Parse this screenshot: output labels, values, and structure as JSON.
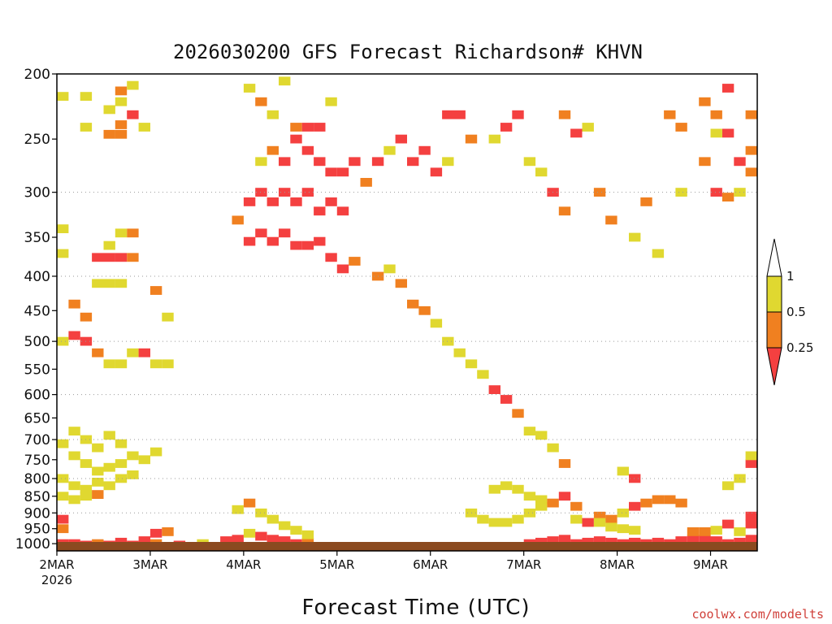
{
  "chart_data": {
    "type": "heatmap",
    "title": "2026030200 GFS Forecast Richardson# KHVN",
    "xlabel": "Forecast Time (UTC)",
    "ylabel": "Pressure (hPa)",
    "x_ticks": [
      "2MAR",
      "3MAR",
      "4MAR",
      "5MAR",
      "6MAR",
      "7MAR",
      "8MAR",
      "9MAR"
    ],
    "x_year_label": "2026",
    "x_range_hours": [
      0,
      180
    ],
    "y_ticks": [
      200,
      250,
      300,
      350,
      400,
      450,
      500,
      550,
      600,
      650,
      700,
      750,
      800,
      850,
      900,
      950,
      1000
    ],
    "ylim": [
      1025,
      200
    ],
    "legend": {
      "labels": [
        "1",
        "0.5",
        "0.25"
      ],
      "bins": [
        {
          "range": "> 1",
          "color": "#ffffff"
        },
        {
          "range": "0.5 - 1",
          "color": "#e0d830"
        },
        {
          "range": "0.25 - 0.5",
          "color": "#f08020"
        },
        {
          "range": "< 0.25",
          "color": "#f44040"
        }
      ]
    },
    "cells": [
      [
        0,
        216,
        "#e0d830"
      ],
      [
        6,
        216,
        "#e0d830"
      ],
      [
        12,
        226,
        "#e0d830"
      ],
      [
        15,
        212,
        "#f08020"
      ],
      [
        15,
        220,
        "#e0d830"
      ],
      [
        12,
        246,
        "#f08020"
      ],
      [
        15,
        246,
        "#f08020"
      ],
      [
        15,
        238,
        "#f08020"
      ],
      [
        18,
        230,
        "#f44040"
      ],
      [
        18,
        208,
        "#e0d830"
      ],
      [
        21,
        240,
        "#e0d830"
      ],
      [
        6,
        240,
        "#e0d830"
      ],
      [
        0,
        340,
        "#e0d830"
      ],
      [
        0,
        370,
        "#e0d830"
      ],
      [
        9,
        375,
        "#f44040"
      ],
      [
        12,
        375,
        "#f44040"
      ],
      [
        15,
        375,
        "#f44040"
      ],
      [
        18,
        375,
        "#f08020"
      ],
      [
        18,
        345,
        "#f08020"
      ],
      [
        15,
        345,
        "#e0d830"
      ],
      [
        12,
        360,
        "#e0d830"
      ],
      [
        9,
        410,
        "#e0d830"
      ],
      [
        12,
        410,
        "#e0d830"
      ],
      [
        15,
        410,
        "#e0d830"
      ],
      [
        3,
        440,
        "#f08020"
      ],
      [
        6,
        460,
        "#f08020"
      ],
      [
        3,
        490,
        "#f44040"
      ],
      [
        6,
        500,
        "#f44040"
      ],
      [
        0,
        500,
        "#e0d830"
      ],
      [
        9,
        520,
        "#f08020"
      ],
      [
        12,
        540,
        "#e0d830"
      ],
      [
        15,
        540,
        "#e0d830"
      ],
      [
        18,
        520,
        "#e0d830"
      ],
      [
        21,
        520,
        "#f44040"
      ],
      [
        24,
        540,
        "#e0d830"
      ],
      [
        27,
        540,
        "#e0d830"
      ],
      [
        27,
        460,
        "#e0d830"
      ],
      [
        24,
        420,
        "#f08020"
      ],
      [
        45,
        330,
        "#f08020"
      ],
      [
        48,
        310,
        "#f44040"
      ],
      [
        51,
        300,
        "#f44040"
      ],
      [
        54,
        310,
        "#f44040"
      ],
      [
        57,
        300,
        "#f44040"
      ],
      [
        60,
        310,
        "#f44040"
      ],
      [
        63,
        300,
        "#f44040"
      ],
      [
        66,
        320,
        "#f44040"
      ],
      [
        69,
        310,
        "#f44040"
      ],
      [
        72,
        320,
        "#f44040"
      ],
      [
        48,
        355,
        "#f44040"
      ],
      [
        51,
        345,
        "#f44040"
      ],
      [
        54,
        355,
        "#f44040"
      ],
      [
        57,
        345,
        "#f44040"
      ],
      [
        60,
        360,
        "#f44040"
      ],
      [
        63,
        360,
        "#f44040"
      ],
      [
        66,
        355,
        "#f44040"
      ],
      [
        69,
        375,
        "#f44040"
      ],
      [
        72,
        390,
        "#f44040"
      ],
      [
        75,
        380,
        "#f08020"
      ],
      [
        51,
        270,
        "#e0d830"
      ],
      [
        54,
        260,
        "#f08020"
      ],
      [
        57,
        270,
        "#f44040"
      ],
      [
        60,
        250,
        "#f44040"
      ],
      [
        63,
        260,
        "#f44040"
      ],
      [
        66,
        270,
        "#f44040"
      ],
      [
        69,
        280,
        "#f44040"
      ],
      [
        72,
        280,
        "#f44040"
      ],
      [
        75,
        270,
        "#f44040"
      ],
      [
        78,
        290,
        "#f08020"
      ],
      [
        54,
        230,
        "#e0d830"
      ],
      [
        60,
        240,
        "#f08020"
      ],
      [
        63,
        240,
        "#f44040"
      ],
      [
        66,
        240,
        "#f44040"
      ],
      [
        69,
        220,
        "#e0d830"
      ],
      [
        48,
        210,
        "#e0d830"
      ],
      [
        51,
        220,
        "#f08020"
      ],
      [
        57,
        205,
        "#e0d830"
      ],
      [
        81,
        270,
        "#f44040"
      ],
      [
        84,
        260,
        "#e0d830"
      ],
      [
        87,
        250,
        "#f44040"
      ],
      [
        90,
        270,
        "#f44040"
      ],
      [
        93,
        260,
        "#f44040"
      ],
      [
        96,
        280,
        "#f44040"
      ],
      [
        99,
        270,
        "#e0d830"
      ],
      [
        99,
        230,
        "#f44040"
      ],
      [
        102,
        230,
        "#f44040"
      ],
      [
        105,
        250,
        "#f08020"
      ],
      [
        81,
        400,
        "#f08020"
      ],
      [
        84,
        390,
        "#e0d830"
      ],
      [
        87,
        410,
        "#f08020"
      ],
      [
        90,
        440,
        "#f08020"
      ],
      [
        93,
        450,
        "#f08020"
      ],
      [
        96,
        470,
        "#e0d830"
      ],
      [
        99,
        500,
        "#e0d830"
      ],
      [
        102,
        520,
        "#e0d830"
      ],
      [
        105,
        540,
        "#e0d830"
      ],
      [
        108,
        560,
        "#e0d830"
      ],
      [
        111,
        590,
        "#f44040"
      ],
      [
        114,
        610,
        "#f44040"
      ],
      [
        117,
        640,
        "#f08020"
      ],
      [
        120,
        680,
        "#e0d830"
      ],
      [
        123,
        690,
        "#e0d830"
      ],
      [
        126,
        720,
        "#e0d830"
      ],
      [
        129,
        760,
        "#f08020"
      ],
      [
        111,
        250,
        "#e0d830"
      ],
      [
        114,
        240,
        "#f44040"
      ],
      [
        117,
        230,
        "#f44040"
      ],
      [
        120,
        270,
        "#e0d830"
      ],
      [
        123,
        280,
        "#e0d830"
      ],
      [
        126,
        300,
        "#f44040"
      ],
      [
        129,
        320,
        "#f08020"
      ],
      [
        0,
        710,
        "#e0d830"
      ],
      [
        3,
        740,
        "#e0d830"
      ],
      [
        6,
        760,
        "#e0d830"
      ],
      [
        9,
        780,
        "#e0d830"
      ],
      [
        12,
        770,
        "#e0d830"
      ],
      [
        15,
        760,
        "#e0d830"
      ],
      [
        18,
        740,
        "#e0d830"
      ],
      [
        21,
        750,
        "#e0d830"
      ],
      [
        24,
        730,
        "#e0d830"
      ],
      [
        3,
        680,
        "#e0d830"
      ],
      [
        6,
        700,
        "#e0d830"
      ],
      [
        9,
        720,
        "#e0d830"
      ],
      [
        12,
        690,
        "#e0d830"
      ],
      [
        15,
        710,
        "#e0d830"
      ],
      [
        0,
        800,
        "#e0d830"
      ],
      [
        3,
        820,
        "#e0d830"
      ],
      [
        6,
        830,
        "#e0d830"
      ],
      [
        9,
        810,
        "#e0d830"
      ],
      [
        12,
        820,
        "#e0d830"
      ],
      [
        15,
        800,
        "#e0d830"
      ],
      [
        18,
        790,
        "#e0d830"
      ],
      [
        0,
        850,
        "#e0d830"
      ],
      [
        3,
        860,
        "#e0d830"
      ],
      [
        6,
        850,
        "#e0d830"
      ],
      [
        9,
        845,
        "#f08020"
      ],
      [
        0,
        920,
        "#f44040"
      ],
      [
        0,
        950,
        "#f08020"
      ],
      [
        0,
        1000,
        "#f44040"
      ],
      [
        3,
        1000,
        "#f44040"
      ],
      [
        6,
        1005,
        "#f44040"
      ],
      [
        9,
        1000,
        "#f08020"
      ],
      [
        12,
        1005,
        "#f44040"
      ],
      [
        15,
        995,
        "#f44040"
      ],
      [
        18,
        1005,
        "#f44040"
      ],
      [
        21,
        990,
        "#f44040"
      ],
      [
        24,
        965,
        "#f44040"
      ],
      [
        24,
        1000,
        "#f08020"
      ],
      [
        27,
        960,
        "#f08020"
      ],
      [
        30,
        1005,
        "#f44040"
      ],
      [
        36,
        1000,
        "#e0d830"
      ],
      [
        42,
        990,
        "#f44040"
      ],
      [
        45,
        985,
        "#f44040"
      ],
      [
        48,
        965,
        "#e0d830"
      ],
      [
        51,
        975,
        "#f44040"
      ],
      [
        54,
        985,
        "#f44040"
      ],
      [
        57,
        990,
        "#f44040"
      ],
      [
        60,
        1000,
        "#f44040"
      ],
      [
        63,
        995,
        "#f08020"
      ],
      [
        51,
        900,
        "#e0d830"
      ],
      [
        54,
        920,
        "#e0d830"
      ],
      [
        57,
        940,
        "#e0d830"
      ],
      [
        60,
        955,
        "#e0d830"
      ],
      [
        63,
        970,
        "#e0d830"
      ],
      [
        48,
        870,
        "#f08020"
      ],
      [
        45,
        890,
        "#e0d830"
      ],
      [
        105,
        900,
        "#e0d830"
      ],
      [
        108,
        920,
        "#e0d830"
      ],
      [
        111,
        930,
        "#e0d830"
      ],
      [
        114,
        930,
        "#e0d830"
      ],
      [
        117,
        920,
        "#e0d830"
      ],
      [
        120,
        900,
        "#e0d830"
      ],
      [
        123,
        880,
        "#e0d830"
      ],
      [
        111,
        830,
        "#e0d830"
      ],
      [
        114,
        820,
        "#e0d830"
      ],
      [
        117,
        830,
        "#e0d830"
      ],
      [
        120,
        850,
        "#e0d830"
      ],
      [
        123,
        860,
        "#e0d830"
      ],
      [
        126,
        870,
        "#f08020"
      ],
      [
        129,
        850,
        "#f44040"
      ],
      [
        132,
        880,
        "#f08020"
      ],
      [
        132,
        920,
        "#e0d830"
      ],
      [
        135,
        930,
        "#f44040"
      ],
      [
        138,
        910,
        "#f08020"
      ],
      [
        141,
        920,
        "#f08020"
      ],
      [
        144,
        900,
        "#e0d830"
      ],
      [
        147,
        880,
        "#f44040"
      ],
      [
        150,
        870,
        "#f08020"
      ],
      [
        153,
        860,
        "#f08020"
      ],
      [
        156,
        860,
        "#f08020"
      ],
      [
        159,
        870,
        "#f08020"
      ],
      [
        147,
        800,
        "#f44040"
      ],
      [
        144,
        780,
        "#e0d830"
      ],
      [
        138,
        930,
        "#e0d830"
      ],
      [
        141,
        945,
        "#e0d830"
      ],
      [
        144,
        950,
        "#e0d830"
      ],
      [
        147,
        955,
        "#e0d830"
      ],
      [
        120,
        1000,
        "#f44040"
      ],
      [
        123,
        995,
        "#f44040"
      ],
      [
        126,
        990,
        "#f44040"
      ],
      [
        129,
        985,
        "#f44040"
      ],
      [
        132,
        1000,
        "#f44040"
      ],
      [
        135,
        995,
        "#f44040"
      ],
      [
        138,
        990,
        "#f44040"
      ],
      [
        141,
        995,
        "#f44040"
      ],
      [
        144,
        1000,
        "#f44040"
      ],
      [
        147,
        995,
        "#f44040"
      ],
      [
        150,
        1000,
        "#f44040"
      ],
      [
        153,
        995,
        "#f44040"
      ],
      [
        156,
        1000,
        "#f44040"
      ],
      [
        159,
        990,
        "#f44040"
      ],
      [
        162,
        985,
        "#f44040"
      ],
      [
        165,
        985,
        "#f44040"
      ],
      [
        168,
        990,
        "#f44040"
      ],
      [
        171,
        1000,
        "#f44040"
      ],
      [
        174,
        995,
        "#f44040"
      ],
      [
        177,
        985,
        "#f44040"
      ],
      [
        162,
        960,
        "#f08020"
      ],
      [
        165,
        960,
        "#f08020"
      ],
      [
        168,
        955,
        "#e0d830"
      ],
      [
        171,
        935,
        "#f44040"
      ],
      [
        174,
        960,
        "#e0d830"
      ],
      [
        177,
        910,
        "#f44040"
      ],
      [
        177,
        935,
        "#f44040"
      ],
      [
        171,
        820,
        "#e0d830"
      ],
      [
        174,
        800,
        "#e0d830"
      ],
      [
        177,
        760,
        "#f44040"
      ],
      [
        177,
        740,
        "#e0d830"
      ],
      [
        165,
        220,
        "#f08020"
      ],
      [
        168,
        230,
        "#f08020"
      ],
      [
        171,
        245,
        "#f44040"
      ],
      [
        174,
        270,
        "#f44040"
      ],
      [
        177,
        260,
        "#f08020"
      ],
      [
        165,
        270,
        "#f08020"
      ],
      [
        168,
        300,
        "#f44040"
      ],
      [
        171,
        305,
        "#f08020"
      ],
      [
        174,
        300,
        "#e0d830"
      ],
      [
        177,
        280,
        "#f08020"
      ],
      [
        177,
        230,
        "#f08020"
      ],
      [
        171,
        210,
        "#f44040"
      ],
      [
        168,
        245,
        "#e0d830"
      ],
      [
        156,
        230,
        "#f08020"
      ],
      [
        159,
        240,
        "#f08020"
      ],
      [
        159,
        300,
        "#e0d830"
      ],
      [
        150,
        310,
        "#f08020"
      ],
      [
        147,
        350,
        "#e0d830"
      ],
      [
        153,
        370,
        "#e0d830"
      ],
      [
        138,
        300,
        "#f08020"
      ],
      [
        141,
        330,
        "#f08020"
      ],
      [
        135,
        240,
        "#e0d830"
      ],
      [
        132,
        245,
        "#f44040"
      ],
      [
        129,
        230,
        "#f08020"
      ]
    ]
  }
}
